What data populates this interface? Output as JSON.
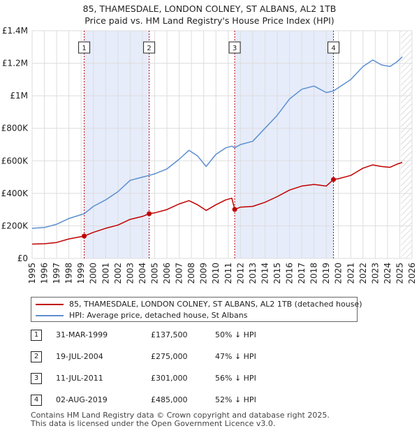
{
  "title": {
    "line1": "85, THAMESDALE, LONDON COLNEY, ST ALBANS, AL2 1TB",
    "line2": "Price paid vs. HM Land Registry's House Price Index (HPI)"
  },
  "colors": {
    "property": "#c00000",
    "hpi": "#5b8fd0",
    "shade": "#e6ecfa",
    "marker_line": "#c00000",
    "grid": "#dddddd"
  },
  "chart_data": {
    "type": "line",
    "title": "85, THAMESDALE, LONDON COLNEY, ST ALBANS, AL2 1TB — Price paid vs. HM Land Registry's House Price Index (HPI)",
    "xlabel": "",
    "ylabel": "",
    "xlim": [
      1995,
      2026
    ],
    "ylim": [
      0,
      1400000
    ],
    "x_ticks": [
      1995,
      1996,
      1997,
      1998,
      1999,
      2000,
      2001,
      2002,
      2003,
      2004,
      2005,
      2006,
      2007,
      2008,
      2009,
      2010,
      2011,
      2012,
      2013,
      2014,
      2015,
      2016,
      2017,
      2018,
      2019,
      2020,
      2021,
      2022,
      2023,
      2024,
      2025,
      2026
    ],
    "y_ticks": [
      {
        "value": 0,
        "label": "£0"
      },
      {
        "value": 200000,
        "label": "£200K"
      },
      {
        "value": 400000,
        "label": "£400K"
      },
      {
        "value": 600000,
        "label": "£600K"
      },
      {
        "value": 800000,
        "label": "£800K"
      },
      {
        "value": 1000000,
        "label": "£1M"
      },
      {
        "value": 1200000,
        "label": "£1.2M"
      },
      {
        "value": 1400000,
        "label": "£1.4M"
      }
    ],
    "shaded_spans": [
      [
        1999.25,
        2004.55
      ],
      [
        2011.53,
        2019.59
      ]
    ],
    "future_hatch_from": 2025.1,
    "markers": [
      {
        "label": "1",
        "x": 1999.25,
        "y": 137500
      },
      {
        "label": "2",
        "x": 2004.55,
        "y": 275000
      },
      {
        "label": "3",
        "x": 2011.53,
        "y": 301000
      },
      {
        "label": "4",
        "x": 2019.59,
        "y": 485000
      }
    ],
    "series": [
      {
        "name": "85, THAMESDALE, LONDON COLNEY, ST ALBANS, AL2 1TB (detached house)",
        "color": "#c00000",
        "points": [
          [
            1995.0,
            88000
          ],
          [
            1996.0,
            90000
          ],
          [
            1997.0,
            98000
          ],
          [
            1998.0,
            120000
          ],
          [
            1999.25,
            137500
          ],
          [
            2000.0,
            160000
          ],
          [
            2001.0,
            185000
          ],
          [
            2002.0,
            205000
          ],
          [
            2003.0,
            240000
          ],
          [
            2004.0,
            258000
          ],
          [
            2004.55,
            275000
          ],
          [
            2005.0,
            280000
          ],
          [
            2006.0,
            300000
          ],
          [
            2007.0,
            335000
          ],
          [
            2007.8,
            355000
          ],
          [
            2008.5,
            330000
          ],
          [
            2009.2,
            295000
          ],
          [
            2010.0,
            330000
          ],
          [
            2010.8,
            360000
          ],
          [
            2011.3,
            370000
          ],
          [
            2011.53,
            301000
          ],
          [
            2012.0,
            315000
          ],
          [
            2013.0,
            320000
          ],
          [
            2014.0,
            345000
          ],
          [
            2015.0,
            380000
          ],
          [
            2016.0,
            420000
          ],
          [
            2017.0,
            445000
          ],
          [
            2018.0,
            455000
          ],
          [
            2019.0,
            445000
          ],
          [
            2019.59,
            485000
          ],
          [
            2020.0,
            490000
          ],
          [
            2021.0,
            510000
          ],
          [
            2022.0,
            555000
          ],
          [
            2022.8,
            575000
          ],
          [
            2023.5,
            565000
          ],
          [
            2024.2,
            560000
          ],
          [
            2024.8,
            580000
          ],
          [
            2025.2,
            590000
          ]
        ]
      },
      {
        "name": "HPI: Average price, detached house, St Albans",
        "color": "#5b8fd0",
        "points": [
          [
            1995.0,
            185000
          ],
          [
            1996.0,
            190000
          ],
          [
            1997.0,
            210000
          ],
          [
            1998.0,
            245000
          ],
          [
            1999.25,
            275000
          ],
          [
            2000.0,
            320000
          ],
          [
            2001.0,
            360000
          ],
          [
            2002.0,
            410000
          ],
          [
            2003.0,
            480000
          ],
          [
            2004.0,
            500000
          ],
          [
            2004.55,
            510000
          ],
          [
            2005.0,
            520000
          ],
          [
            2006.0,
            550000
          ],
          [
            2007.0,
            610000
          ],
          [
            2007.8,
            665000
          ],
          [
            2008.5,
            630000
          ],
          [
            2009.2,
            565000
          ],
          [
            2010.0,
            640000
          ],
          [
            2010.8,
            680000
          ],
          [
            2011.3,
            690000
          ],
          [
            2011.53,
            680000
          ],
          [
            2012.0,
            700000
          ],
          [
            2013.0,
            720000
          ],
          [
            2014.0,
            800000
          ],
          [
            2015.0,
            880000
          ],
          [
            2016.0,
            980000
          ],
          [
            2017.0,
            1040000
          ],
          [
            2018.0,
            1060000
          ],
          [
            2019.0,
            1020000
          ],
          [
            2019.59,
            1030000
          ],
          [
            2020.0,
            1050000
          ],
          [
            2021.0,
            1100000
          ],
          [
            2022.0,
            1180000
          ],
          [
            2022.8,
            1220000
          ],
          [
            2023.5,
            1190000
          ],
          [
            2024.2,
            1180000
          ],
          [
            2024.8,
            1210000
          ],
          [
            2025.2,
            1240000
          ]
        ]
      }
    ]
  },
  "legend": {
    "property_label": "85, THAMESDALE, LONDON COLNEY, ST ALBANS, AL2 1TB (detached house)",
    "hpi_label": "HPI: Average price, detached house, St Albans"
  },
  "sales": [
    {
      "num": "1",
      "date": "31-MAR-1999",
      "price": "£137,500",
      "hpi": "50% ↓ HPI"
    },
    {
      "num": "2",
      "date": "19-JUL-2004",
      "price": "£275,000",
      "hpi": "47% ↓ HPI"
    },
    {
      "num": "3",
      "date": "11-JUL-2011",
      "price": "£301,000",
      "hpi": "56% ↓ HPI"
    },
    {
      "num": "4",
      "date": "02-AUG-2019",
      "price": "£485,000",
      "hpi": "52% ↓ HPI"
    }
  ],
  "footer": {
    "line1": "Contains HM Land Registry data © Crown copyright and database right 2025.",
    "line2": "This data is licensed under the Open Government Licence v3.0."
  }
}
